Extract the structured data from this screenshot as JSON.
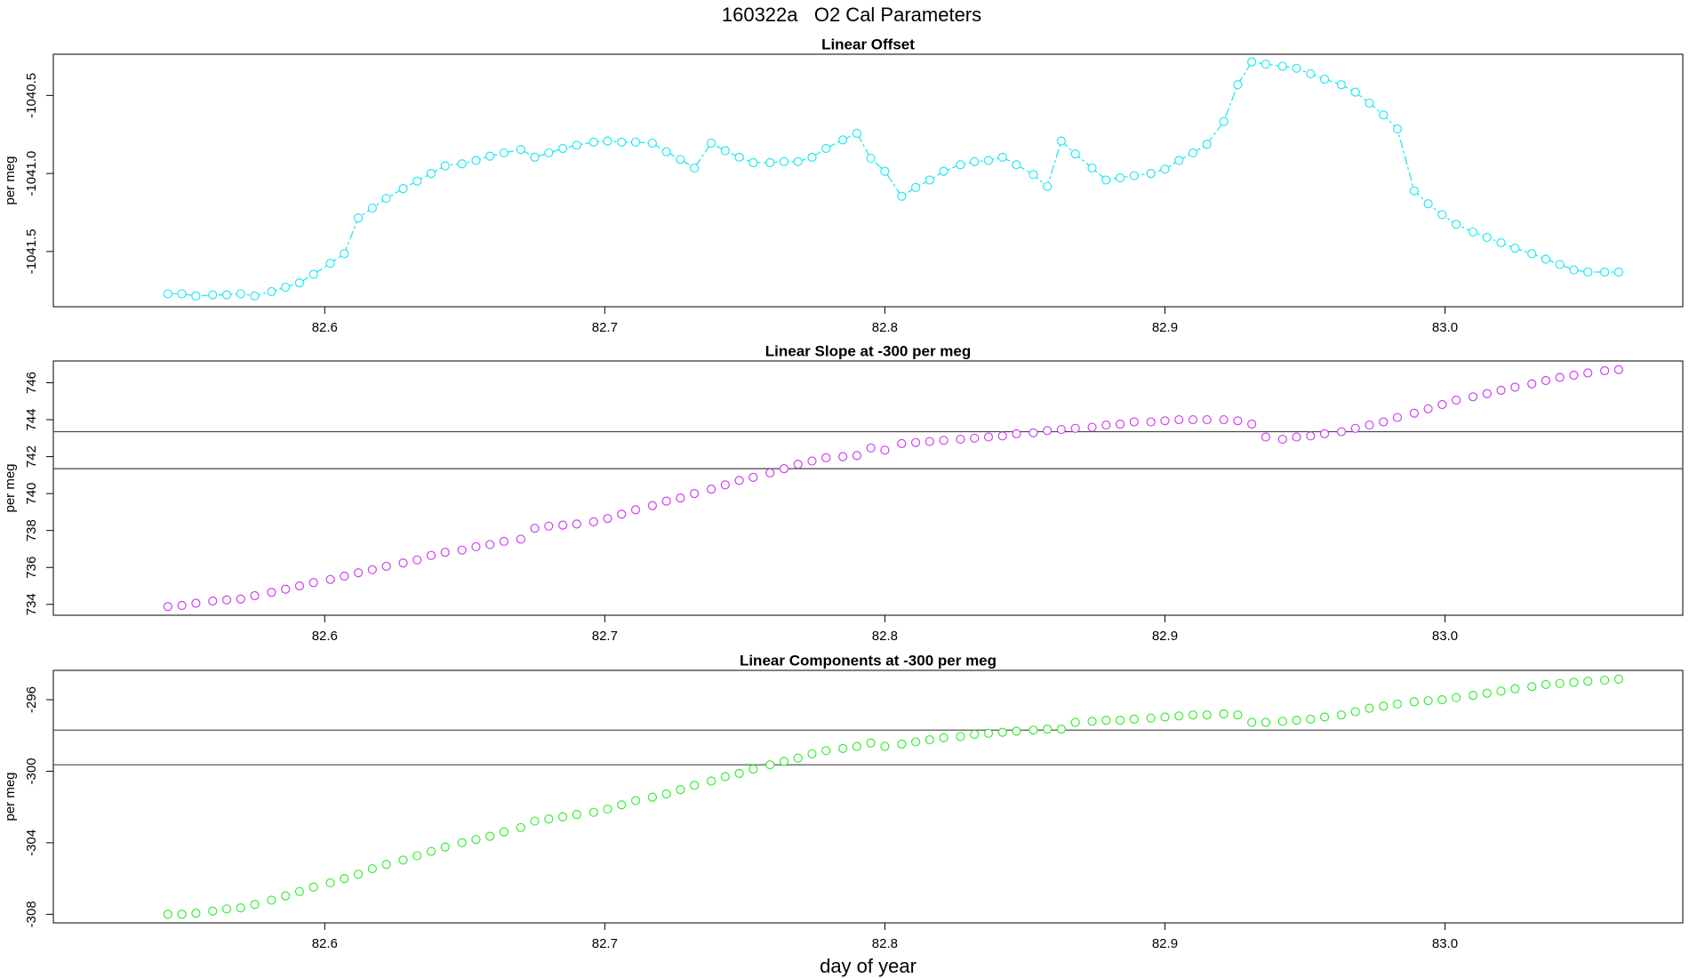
{
  "title": "160322a   O2 Cal Parameters",
  "chart_data": [
    {
      "type": "line",
      "title": "Linear Offset",
      "ylabel": "per meg",
      "color": "#22e8f0",
      "xlim": [
        82.5031,
        83.0849
      ],
      "xticks": [
        82.6,
        82.7,
        82.8,
        82.9,
        {
          "value": 83,
          "label": "83.0"
        }
      ],
      "ylim": [
        -1041.854,
        -1040.236
      ],
      "yticks": [
        -1041.5,
        {
          "value": -1041,
          "label": "-1041.0"
        },
        -1040.5
      ],
      "x": [
        82.544,
        82.549,
        82.554,
        82.56,
        82.565,
        82.57,
        82.575,
        82.581,
        82.586,
        82.591,
        82.596,
        82.602,
        82.607,
        82.612,
        82.617,
        82.622,
        82.628,
        82.633,
        82.638,
        82.643,
        82.649,
        82.654,
        82.659,
        82.664,
        82.67,
        82.675,
        82.68,
        82.685,
        82.69,
        82.696,
        82.701,
        82.706,
        82.711,
        82.717,
        82.722,
        82.727,
        82.732,
        82.738,
        82.743,
        82.748,
        82.753,
        82.759,
        82.764,
        82.769,
        82.774,
        82.779,
        82.785,
        82.79,
        82.795,
        82.8,
        82.806,
        82.811,
        82.816,
        82.821,
        82.827,
        82.832,
        82.837,
        82.842,
        82.847,
        82.853,
        82.858,
        82.863,
        82.868,
        82.874,
        82.879,
        82.884,
        82.889,
        82.895,
        82.9,
        82.905,
        82.91,
        82.915,
        82.921,
        82.926,
        82.931,
        82.936,
        82.942,
        82.947,
        82.952,
        82.957,
        82.963,
        82.968,
        82.973,
        82.978,
        82.983,
        82.989,
        82.994,
        82.999,
        83.004,
        83.01,
        83.015,
        83.02,
        83.025,
        83.031,
        83.036,
        83.041,
        83.046,
        83.051,
        83.057,
        83.062
      ],
      "values": [
        -1041.771,
        -1041.771,
        -1041.785,
        -1041.778,
        -1041.778,
        -1041.771,
        -1041.785,
        -1041.757,
        -1041.729,
        -1041.701,
        -1041.646,
        -1041.576,
        -1041.514,
        -1041.285,
        -1041.222,
        -1041.16,
        -1041.097,
        -1041.049,
        -1041.0,
        -1040.951,
        -1040.938,
        -1040.917,
        -1040.889,
        -1040.868,
        -1040.847,
        -1040.896,
        -1040.868,
        -1040.84,
        -1040.819,
        -1040.799,
        -1040.792,
        -1040.799,
        -1040.799,
        -1040.806,
        -1040.861,
        -1040.91,
        -1040.965,
        -1040.806,
        -1040.854,
        -1040.896,
        -1040.931,
        -1040.931,
        -1040.924,
        -1040.924,
        -1040.896,
        -1040.84,
        -1040.785,
        -1040.743,
        -1040.903,
        -1040.986,
        -1041.146,
        -1041.09,
        -1041.042,
        -1040.986,
        -1040.944,
        -1040.924,
        -1040.917,
        -1040.896,
        -1040.944,
        -1041.007,
        -1041.083,
        -1040.792,
        -1040.875,
        -1040.965,
        -1041.042,
        -1041.028,
        -1041.014,
        -1041.0,
        -1040.972,
        -1040.917,
        -1040.868,
        -1040.813,
        -1040.667,
        -1040.431,
        -1040.285,
        -1040.299,
        -1040.313,
        -1040.326,
        -1040.361,
        -1040.396,
        -1040.431,
        -1040.479,
        -1040.549,
        -1040.625,
        -1040.715,
        -1041.111,
        -1041.194,
        -1041.264,
        -1041.326,
        -1041.375,
        -1041.41,
        -1041.444,
        -1041.479,
        -1041.514,
        -1041.549,
        -1041.583,
        -1041.618,
        -1041.632,
        -1041.632,
        -1041.632
      ]
    },
    {
      "type": "scatter",
      "title": "Linear Slope at -300 per meg",
      "ylabel": "per meg",
      "color": "#cc40f0",
      "xlim": [
        82.5031,
        83.0849
      ],
      "xticks": [
        82.6,
        82.7,
        82.8,
        82.9,
        {
          "value": 83,
          "label": "83.0"
        }
      ],
      "ylim": [
        733.41,
        747.18
      ],
      "yticks": [
        734,
        736,
        738,
        740,
        742,
        744,
        746
      ],
      "hlines": [
        741.35,
        743.35
      ],
      "x": [
        82.544,
        82.549,
        82.554,
        82.56,
        82.565,
        82.57,
        82.575,
        82.581,
        82.586,
        82.591,
        82.596,
        82.602,
        82.607,
        82.612,
        82.617,
        82.622,
        82.628,
        82.633,
        82.638,
        82.643,
        82.649,
        82.654,
        82.659,
        82.664,
        82.67,
        82.675,
        82.68,
        82.685,
        82.69,
        82.696,
        82.701,
        82.706,
        82.711,
        82.717,
        82.722,
        82.727,
        82.732,
        82.738,
        82.743,
        82.748,
        82.753,
        82.759,
        82.764,
        82.769,
        82.774,
        82.779,
        82.785,
        82.79,
        82.795,
        82.8,
        82.806,
        82.811,
        82.816,
        82.821,
        82.827,
        82.832,
        82.837,
        82.842,
        82.847,
        82.853,
        82.858,
        82.863,
        82.868,
        82.874,
        82.879,
        82.884,
        82.889,
        82.895,
        82.9,
        82.905,
        82.91,
        82.915,
        82.921,
        82.926,
        82.931,
        82.936,
        82.942,
        82.947,
        82.952,
        82.957,
        82.963,
        82.968,
        82.973,
        82.978,
        82.983,
        82.989,
        82.994,
        82.999,
        83.004,
        83.01,
        83.015,
        83.02,
        83.025,
        83.031,
        83.036,
        83.041,
        83.046,
        83.051,
        83.057,
        83.062
      ],
      "values": [
        733.88,
        733.94,
        734.06,
        734.18,
        734.24,
        734.29,
        734.47,
        734.65,
        734.82,
        735.0,
        735.18,
        735.35,
        735.53,
        735.71,
        735.88,
        736.06,
        736.24,
        736.41,
        736.65,
        736.82,
        736.94,
        737.12,
        737.24,
        737.41,
        737.53,
        738.12,
        738.24,
        738.29,
        738.35,
        738.47,
        738.65,
        738.88,
        739.12,
        739.35,
        739.59,
        739.76,
        740.0,
        740.24,
        740.47,
        740.71,
        740.88,
        741.12,
        741.35,
        741.59,
        741.76,
        741.94,
        742.0,
        742.06,
        742.47,
        742.35,
        742.71,
        742.76,
        742.82,
        742.88,
        742.94,
        743.0,
        743.06,
        743.12,
        743.24,
        743.29,
        743.41,
        743.47,
        743.53,
        743.59,
        743.71,
        743.76,
        743.88,
        743.88,
        743.94,
        744.0,
        744.0,
        744.0,
        744.0,
        743.94,
        743.76,
        743.06,
        742.94,
        743.06,
        743.12,
        743.24,
        743.35,
        743.53,
        743.71,
        743.88,
        744.12,
        744.35,
        744.59,
        744.82,
        745.06,
        745.24,
        745.41,
        745.59,
        745.76,
        745.94,
        746.12,
        746.29,
        746.41,
        746.53,
        746.65,
        746.71
      ]
    },
    {
      "type": "scatter",
      "title": "Linear Components at -300 per meg",
      "ylabel": "per meg",
      "xlabel": "day of year",
      "color": "#33ee33",
      "xlim": [
        82.5031,
        83.0849
      ],
      "xticks": [
        82.6,
        82.7,
        82.8,
        82.9,
        {
          "value": 83,
          "label": "83.0"
        }
      ],
      "ylim": [
        -308.48,
        -294.36
      ],
      "yticks": [
        -308,
        -304,
        -300,
        -296
      ],
      "hlines": [
        -299.64,
        -297.7
      ],
      "x": [
        82.544,
        82.549,
        82.554,
        82.56,
        82.565,
        82.57,
        82.575,
        82.581,
        82.586,
        82.591,
        82.596,
        82.602,
        82.607,
        82.612,
        82.617,
        82.622,
        82.628,
        82.633,
        82.638,
        82.643,
        82.649,
        82.654,
        82.659,
        82.664,
        82.67,
        82.675,
        82.68,
        82.685,
        82.69,
        82.696,
        82.701,
        82.706,
        82.711,
        82.717,
        82.722,
        82.727,
        82.732,
        82.738,
        82.743,
        82.748,
        82.753,
        82.759,
        82.764,
        82.769,
        82.774,
        82.779,
        82.785,
        82.79,
        82.795,
        82.8,
        82.806,
        82.811,
        82.816,
        82.821,
        82.827,
        82.832,
        82.837,
        82.842,
        82.847,
        82.853,
        82.858,
        82.863,
        82.868,
        82.874,
        82.879,
        82.884,
        82.889,
        82.895,
        82.9,
        82.905,
        82.91,
        82.915,
        82.921,
        82.926,
        82.931,
        82.936,
        82.942,
        82.947,
        82.952,
        82.957,
        82.963,
        82.968,
        82.973,
        82.978,
        82.983,
        82.989,
        82.994,
        82.999,
        83.004,
        83.01,
        83.015,
        83.02,
        83.025,
        83.031,
        83.036,
        83.041,
        83.046,
        83.051,
        83.057,
        83.062
      ],
      "values": [
        -308.0,
        -308.0,
        -307.94,
        -307.82,
        -307.7,
        -307.64,
        -307.45,
        -307.21,
        -306.97,
        -306.73,
        -306.48,
        -306.24,
        -306.0,
        -305.76,
        -305.45,
        -305.21,
        -304.97,
        -304.73,
        -304.48,
        -304.24,
        -304.0,
        -303.82,
        -303.64,
        -303.39,
        -303.15,
        -302.79,
        -302.67,
        -302.55,
        -302.42,
        -302.3,
        -302.12,
        -301.88,
        -301.64,
        -301.45,
        -301.27,
        -301.03,
        -300.79,
        -300.55,
        -300.3,
        -300.12,
        -299.88,
        -299.64,
        -299.45,
        -299.27,
        -299.03,
        -298.85,
        -298.73,
        -298.61,
        -298.42,
        -298.61,
        -298.48,
        -298.36,
        -298.24,
        -298.12,
        -298.06,
        -297.94,
        -297.88,
        -297.82,
        -297.76,
        -297.7,
        -297.64,
        -297.64,
        -297.27,
        -297.21,
        -297.15,
        -297.15,
        -297.09,
        -297.03,
        -296.97,
        -296.91,
        -296.85,
        -296.85,
        -296.79,
        -296.85,
        -297.27,
        -297.27,
        -297.21,
        -297.15,
        -297.09,
        -296.97,
        -296.85,
        -296.67,
        -296.48,
        -296.36,
        -296.24,
        -296.12,
        -296.06,
        -296.0,
        -295.88,
        -295.76,
        -295.64,
        -295.52,
        -295.39,
        -295.27,
        -295.15,
        -295.09,
        -295.03,
        -294.97,
        -294.91,
        -294.85
      ]
    }
  ]
}
